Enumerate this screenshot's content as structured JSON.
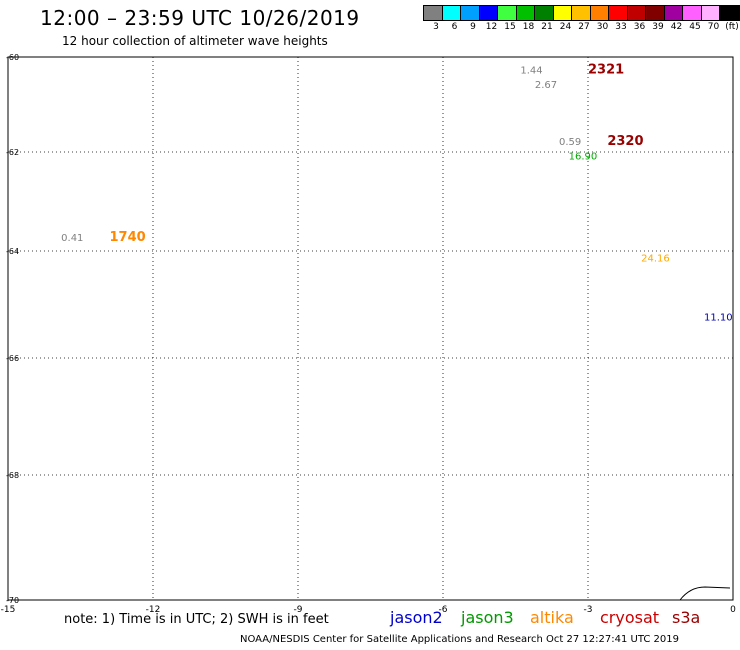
{
  "header": {
    "title": "12:00 – 23:59 UTC 10/26/2019",
    "subtitle": "12 hour collection of altimeter wave heights"
  },
  "legend": {
    "colors": [
      "#808080",
      "#00ffff",
      "#00a0ff",
      "#0000ff",
      "#40ff40",
      "#00c000",
      "#008000",
      "#ffff00",
      "#ffc000",
      "#ff8000",
      "#ff0000",
      "#c00000",
      "#800000",
      "#a000a0",
      "#ff60ff",
      "#ffb0ff",
      "#000000"
    ],
    "ticks": [
      "3",
      "6",
      "9",
      "12",
      "15",
      "18",
      "21",
      "24",
      "27",
      "30",
      "33",
      "36",
      "39",
      "42",
      "45",
      "70",
      "(ft)"
    ]
  },
  "map": {
    "x_ticks": [
      "-15",
      "-12",
      "-9",
      "-6",
      "-3",
      "0"
    ],
    "y_ticks": [
      "-60",
      "-62",
      "-64",
      "-66",
      "-68",
      "-70"
    ],
    "pass_labels": [
      {
        "text": "2321",
        "color": "#990000",
        "lon": -3.0,
        "lat": -60.35
      },
      {
        "text": "2320",
        "color": "#990000",
        "lon": -2.6,
        "lat": -61.85
      },
      {
        "text": "1740",
        "color": "#ff8800",
        "lon": -12.9,
        "lat": -63.8
      }
    ],
    "points": [
      {
        "text": "1.44",
        "color": "#808080",
        "lon": -4.4,
        "lat": -60.35
      },
      {
        "text": "2.67",
        "color": "#808080",
        "lon": -4.1,
        "lat": -60.65
      },
      {
        "text": "0.59",
        "color": "#808080",
        "lon": -3.6,
        "lat": -61.85
      },
      {
        "text": "16.90",
        "color": "#00aa00",
        "lon": -3.4,
        "lat": -62.15
      },
      {
        "text": "0.41",
        "color": "#808080",
        "lon": -13.9,
        "lat": -63.8
      },
      {
        "text": "24.16",
        "color": "#ffaa00",
        "lon": -1.9,
        "lat": -64.2
      },
      {
        "text": "11.10",
        "color": "#0000aa",
        "lon": -0.6,
        "lat": -65.3
      }
    ]
  },
  "footer": {
    "note": "note: 1) Time is in UTC; 2) SWH is in feet",
    "satellites": [
      {
        "name": "jason2",
        "color": "#0000cc"
      },
      {
        "name": "jason3",
        "color": "#009900"
      },
      {
        "name": "altika",
        "color": "#ff8800"
      },
      {
        "name": "cryosat",
        "color": "#cc0000"
      },
      {
        "name": "s3a",
        "color": "#990000"
      }
    ],
    "credit": "NOAA/NESDIS Center for Satellite Applications and Research    Oct 27 12:27:41 UTC 2019"
  }
}
